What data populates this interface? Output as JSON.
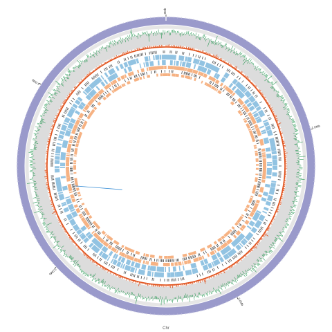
{
  "chromosome": {
    "label": "Chr",
    "scale_labels": [
      "0Mb",
      "1.0Mb",
      "2.0Mb",
      "3.0Mb",
      "4.0Mb"
    ],
    "scale_positions_mb": [
      0,
      1.0,
      2.0,
      3.0,
      4.0
    ],
    "total_mb": 4.75
  },
  "tracks": [
    {
      "id": "ideogram",
      "color": "#9a9acb"
    },
    {
      "id": "gc-skew-band",
      "color": "#e6e6e6"
    },
    {
      "id": "gc-content",
      "color": "#2e9b58"
    },
    {
      "id": "band-grey",
      "color": "#dcdcdc"
    },
    {
      "id": "red-track",
      "color": "#e0541f"
    },
    {
      "id": "dark-ticks",
      "color": "#333333"
    },
    {
      "id": "blue-features",
      "color": "#7fb8dd"
    },
    {
      "id": "orange-features",
      "color": "#f4a46d"
    }
  ],
  "highlight": {
    "color": "#3a8fd6",
    "position_mb": 3.4
  }
}
